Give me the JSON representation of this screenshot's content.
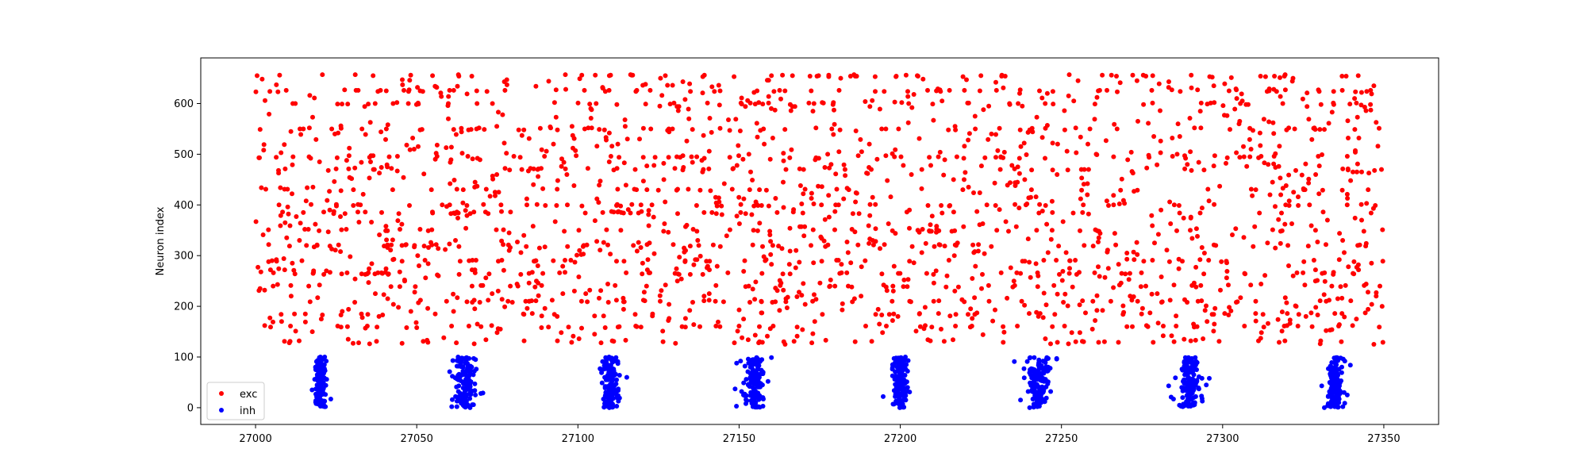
{
  "chart_data": {
    "type": "scatter",
    "title": "",
    "xlabel": "",
    "ylabel": "Neuron index",
    "xlim": [
      26983,
      27367
    ],
    "ylim": [
      -33,
      690
    ],
    "xticks": [
      27000,
      27050,
      27100,
      27150,
      27200,
      27250,
      27300,
      27350
    ],
    "yticks": [
      0,
      100,
      200,
      300,
      400,
      500,
      600
    ],
    "grid": false,
    "legend_position": "bottom-left",
    "marker_size": 3,
    "series": [
      {
        "name": "exc",
        "color": "#ff0000",
        "neuron_range": [
          125,
          655
        ],
        "time_range": [
          27000,
          27350
        ],
        "approx_points": 2100,
        "hot_neurons": [
          130,
          160,
          185,
          210,
          240,
          265,
          290,
          320,
          350,
          385,
          400,
          430,
          470,
          495,
          550,
          600,
          625,
          655
        ]
      },
      {
        "name": "inh",
        "color": "#0000ff",
        "neuron_range": [
          0,
          100
        ],
        "bursts": [
          {
            "center": 27020,
            "width": 3,
            "count": 140
          },
          {
            "center": 27065,
            "width": 5,
            "count": 140
          },
          {
            "center": 27110,
            "width": 4,
            "count": 140
          },
          {
            "center": 27155,
            "width": 5,
            "count": 140
          },
          {
            "center": 27200,
            "width": 4,
            "count": 140
          },
          {
            "center": 27243,
            "width": 5,
            "count": 140
          },
          {
            "center": 27290,
            "width": 5,
            "count": 140
          },
          {
            "center": 27335,
            "width": 4,
            "count": 140
          }
        ]
      }
    ]
  }
}
